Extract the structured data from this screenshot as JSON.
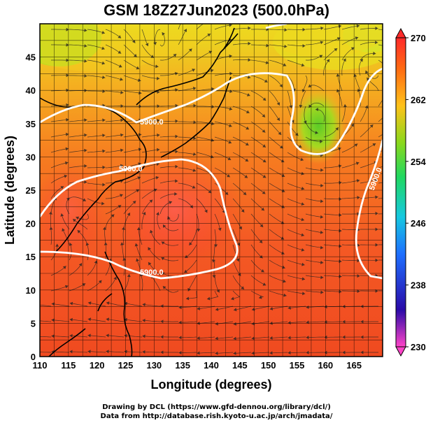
{
  "title": "GSM 18Z27Jun2023 (500.0hPa)",
  "credits": {
    "line1": "Drawing by DCL (https://www.gfd-dennou.org/library/dcl/)",
    "line2": "Data from http://database.rish.kyoto-u.ac.jp/arch/jmadata/"
  },
  "map": {
    "xlabel": "Longitude (degrees)",
    "ylabel": "Latitude  (degrees)",
    "lon_range": [
      110,
      170
    ],
    "lat_range": [
      0,
      50
    ],
    "lon_ticks": [
      "110",
      "115",
      "120",
      "125",
      "130",
      "135",
      "140",
      "145",
      "150",
      "155",
      "160",
      "165"
    ],
    "lat_ticks": [
      "0",
      "5",
      "10",
      "15",
      "20",
      "25",
      "30",
      "35",
      "40",
      "45"
    ],
    "contour_labels": [
      "5900.0",
      "5900.0",
      "5900.0",
      "5900.0"
    ],
    "streamlines": true,
    "field": "500 hPa temperature / geopotential height"
  },
  "colorbar": {
    "min": 230,
    "max": 270,
    "tick_labels": [
      "270",
      "262",
      "254",
      "246",
      "238",
      "230"
    ],
    "stops": [
      "#ff44c8",
      "#2a0aa8",
      "#1e6fff",
      "#16c8e0",
      "#20d860",
      "#8ad81c",
      "#ffc21a",
      "#ff6a12",
      "#ff2a2a"
    ]
  },
  "colors": {
    "frame": "#000000",
    "contour": "#ffffff",
    "coastline": "#000000"
  }
}
